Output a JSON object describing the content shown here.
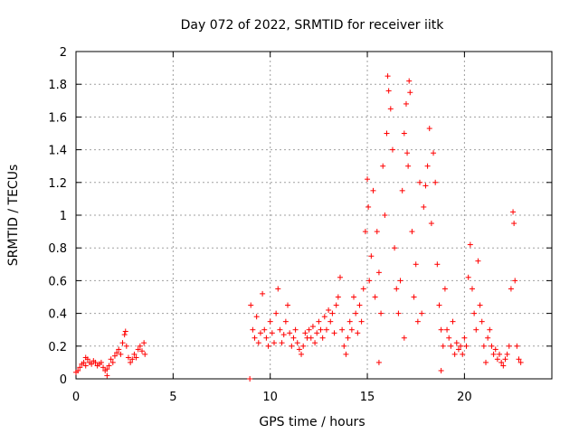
{
  "chart_data": {
    "type": "scatter",
    "title": "Day 072 of 2022, SRMTID for receiver iitk",
    "xlabel": "GPS time / hours",
    "ylabel": "SRMTID / TECUs",
    "xlim": [
      0,
      24.5
    ],
    "ylim": [
      0,
      2
    ],
    "xticks": [
      0,
      5,
      10,
      15,
      20
    ],
    "xtick_labels": [
      "0",
      "5",
      "10",
      "15",
      "20"
    ],
    "yticks": [
      0,
      0.2,
      0.4,
      0.6,
      0.8,
      1,
      1.2,
      1.4,
      1.6,
      1.8,
      2
    ],
    "ytick_labels": [
      "0",
      "0.2",
      "0.4",
      "0.6",
      "0.8",
      "1",
      "1.2",
      "1.4",
      "1.6",
      "1.8",
      "2"
    ],
    "grid": true,
    "marker": "+",
    "color": "#ff0000",
    "series": [
      {
        "name": "SRMTID",
        "points": [
          [
            0.0,
            0.04
          ],
          [
            0.1,
            0.05
          ],
          [
            0.2,
            0.07
          ],
          [
            0.3,
            0.09
          ],
          [
            0.4,
            0.1
          ],
          [
            0.5,
            0.08
          ],
          [
            0.6,
            0.12
          ],
          [
            0.7,
            0.1
          ],
          [
            0.8,
            0.09
          ],
          [
            0.9,
            0.11
          ],
          [
            1.0,
            0.1
          ],
          [
            1.1,
            0.08
          ],
          [
            1.2,
            0.09
          ],
          [
            1.3,
            0.1
          ],
          [
            1.4,
            0.07
          ],
          [
            1.5,
            0.05
          ],
          [
            1.6,
            0.06
          ],
          [
            1.7,
            0.08
          ],
          [
            1.8,
            0.12
          ],
          [
            1.9,
            0.1
          ],
          [
            2.0,
            0.14
          ],
          [
            2.1,
            0.16
          ],
          [
            2.2,
            0.18
          ],
          [
            2.3,
            0.15
          ],
          [
            2.4,
            0.22
          ],
          [
            2.5,
            0.27
          ],
          [
            2.6,
            0.2
          ],
          [
            2.7,
            0.13
          ],
          [
            2.8,
            0.1
          ],
          [
            2.9,
            0.12
          ],
          [
            3.0,
            0.15
          ],
          [
            3.1,
            0.13
          ],
          [
            3.2,
            0.18
          ],
          [
            3.3,
            0.2
          ],
          [
            3.4,
            0.17
          ],
          [
            3.5,
            0.22
          ],
          [
            3.55,
            0.15
          ],
          [
            0.5,
            0.13
          ],
          [
            1.6,
            0.02
          ],
          [
            2.55,
            0.29
          ],
          [
            8.95,
            0.0
          ],
          [
            9.0,
            0.45
          ],
          [
            9.1,
            0.3
          ],
          [
            9.2,
            0.25
          ],
          [
            9.3,
            0.38
          ],
          [
            9.4,
            0.22
          ],
          [
            9.5,
            0.28
          ],
          [
            9.6,
            0.52
          ],
          [
            9.7,
            0.3
          ],
          [
            9.8,
            0.25
          ],
          [
            9.9,
            0.2
          ],
          [
            10.0,
            0.35
          ],
          [
            10.1,
            0.28
          ],
          [
            10.2,
            0.22
          ],
          [
            10.3,
            0.4
          ],
          [
            10.4,
            0.55
          ],
          [
            10.5,
            0.3
          ],
          [
            10.6,
            0.22
          ],
          [
            10.7,
            0.27
          ],
          [
            10.8,
            0.35
          ],
          [
            10.9,
            0.45
          ],
          [
            11.0,
            0.28
          ],
          [
            11.1,
            0.2
          ],
          [
            11.2,
            0.25
          ],
          [
            11.3,
            0.3
          ],
          [
            11.4,
            0.22
          ],
          [
            11.5,
            0.18
          ],
          [
            11.6,
            0.15
          ],
          [
            11.7,
            0.2
          ],
          [
            11.8,
            0.28
          ],
          [
            11.9,
            0.25
          ],
          [
            12.0,
            0.3
          ],
          [
            12.1,
            0.25
          ],
          [
            12.2,
            0.32
          ],
          [
            12.3,
            0.22
          ],
          [
            12.4,
            0.28
          ],
          [
            12.5,
            0.35
          ],
          [
            12.6,
            0.3
          ],
          [
            12.7,
            0.25
          ],
          [
            12.8,
            0.38
          ],
          [
            12.9,
            0.3
          ],
          [
            13.0,
            0.42
          ],
          [
            13.1,
            0.35
          ],
          [
            13.2,
            0.4
          ],
          [
            13.3,
            0.28
          ],
          [
            13.4,
            0.45
          ],
          [
            13.5,
            0.5
          ],
          [
            13.6,
            0.62
          ],
          [
            13.7,
            0.3
          ],
          [
            13.8,
            0.2
          ],
          [
            13.9,
            0.15
          ],
          [
            14.0,
            0.25
          ],
          [
            14.1,
            0.35
          ],
          [
            14.2,
            0.3
          ],
          [
            14.3,
            0.5
          ],
          [
            14.4,
            0.4
          ],
          [
            14.5,
            0.28
          ],
          [
            14.6,
            0.45
          ],
          [
            14.7,
            0.35
          ],
          [
            14.8,
            0.55
          ],
          [
            14.9,
            0.9
          ],
          [
            15.0,
            1.22
          ],
          [
            15.05,
            1.05
          ],
          [
            15.1,
            0.6
          ],
          [
            15.2,
            0.75
          ],
          [
            15.3,
            1.15
          ],
          [
            15.4,
            0.5
          ],
          [
            15.5,
            0.9
          ],
          [
            15.6,
            0.65
          ],
          [
            15.7,
            0.4
          ],
          [
            15.8,
            1.3
          ],
          [
            15.9,
            1.0
          ],
          [
            16.0,
            1.5
          ],
          [
            16.05,
            1.85
          ],
          [
            16.1,
            1.76
          ],
          [
            16.2,
            1.65
          ],
          [
            16.3,
            1.4
          ],
          [
            16.4,
            0.8
          ],
          [
            16.5,
            0.55
          ],
          [
            16.6,
            0.4
          ],
          [
            16.7,
            0.6
          ],
          [
            16.8,
            1.15
          ],
          [
            16.9,
            1.5
          ],
          [
            17.0,
            1.68
          ],
          [
            17.05,
            1.38
          ],
          [
            17.1,
            1.3
          ],
          [
            17.15,
            1.82
          ],
          [
            17.2,
            1.75
          ],
          [
            17.3,
            0.9
          ],
          [
            17.4,
            0.5
          ],
          [
            17.5,
            0.7
          ],
          [
            17.6,
            0.35
          ],
          [
            17.7,
            1.2
          ],
          [
            17.8,
            0.4
          ],
          [
            17.9,
            1.05
          ],
          [
            18.0,
            1.18
          ],
          [
            18.1,
            1.3
          ],
          [
            18.2,
            1.53
          ],
          [
            18.3,
            0.95
          ],
          [
            18.4,
            1.38
          ],
          [
            18.5,
            1.2
          ],
          [
            18.6,
            0.7
          ],
          [
            18.7,
            0.45
          ],
          [
            18.8,
            0.3
          ],
          [
            18.9,
            0.2
          ],
          [
            19.0,
            0.55
          ],
          [
            19.1,
            0.3
          ],
          [
            19.2,
            0.25
          ],
          [
            19.3,
            0.2
          ],
          [
            19.4,
            0.35
          ],
          [
            19.5,
            0.15
          ],
          [
            19.6,
            0.22
          ],
          [
            19.7,
            0.18
          ],
          [
            19.8,
            0.2
          ],
          [
            19.9,
            0.15
          ],
          [
            20.0,
            0.25
          ],
          [
            20.1,
            0.2
          ],
          [
            20.2,
            0.62
          ],
          [
            20.3,
            0.82
          ],
          [
            20.4,
            0.55
          ],
          [
            20.5,
            0.4
          ],
          [
            20.6,
            0.3
          ],
          [
            20.7,
            0.72
          ],
          [
            20.8,
            0.45
          ],
          [
            20.9,
            0.35
          ],
          [
            21.0,
            0.2
          ],
          [
            21.1,
            0.1
          ],
          [
            21.2,
            0.25
          ],
          [
            21.3,
            0.3
          ],
          [
            21.4,
            0.2
          ],
          [
            21.5,
            0.15
          ],
          [
            21.6,
            0.18
          ],
          [
            21.7,
            0.12
          ],
          [
            21.8,
            0.15
          ],
          [
            21.9,
            0.1
          ],
          [
            22.0,
            0.08
          ],
          [
            22.1,
            0.12
          ],
          [
            22.2,
            0.15
          ],
          [
            22.3,
            0.2
          ],
          [
            22.4,
            0.55
          ],
          [
            22.5,
            1.02
          ],
          [
            22.55,
            0.95
          ],
          [
            22.6,
            0.6
          ],
          [
            22.7,
            0.2
          ],
          [
            22.8,
            0.12
          ],
          [
            22.9,
            0.1
          ],
          [
            18.8,
            0.05
          ],
          [
            15.6,
            0.1
          ],
          [
            16.9,
            0.25
          ]
        ]
      }
    ]
  }
}
